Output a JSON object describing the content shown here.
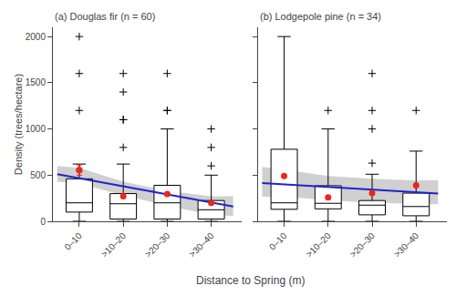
{
  "chart_data": [
    {
      "type": "box",
      "title": "(a) Douglas fir (n = 60)",
      "ylabel": "Density (trees/hectare)",
      "xlabel": "Distance to Spring (m)",
      "categories": [
        "0–10",
        ">10–20",
        ">20–30",
        ">30–40"
      ],
      "x": [
        1,
        2,
        3,
        4
      ],
      "xlim": [
        0.4,
        4.7
      ],
      "ylim": [
        0,
        2100
      ],
      "yticks": [
        0,
        500,
        1000,
        1500,
        2000
      ],
      "grid": false,
      "boxes": {
        "q1": [
          100,
          25,
          25,
          25
        ],
        "median": [
          200,
          190,
          200,
          125
        ],
        "q3": [
          460,
          300,
          390,
          225
        ],
        "whisker_low": [
          0,
          0,
          0,
          0
        ],
        "whisker_high": [
          620,
          620,
          1000,
          500
        ],
        "color": "white",
        "edge_color": "black"
      },
      "outliers": {
        "values": [
          [
            1600,
            1200,
            2000
          ],
          [
            1600,
            1400,
            800,
            1100,
            1100
          ],
          [
            1600,
            1200,
            1200
          ],
          [
            1000,
            800,
            600
          ]
        ],
        "color": "black",
        "marker": "plus"
      },
      "means": {
        "values": [
          555,
          270,
          295,
          200
        ],
        "err_up": [
          55,
          0,
          0,
          0
        ],
        "err_dn": [
          55,
          0,
          0,
          0
        ],
        "color": "#e8281e",
        "marker": "circle"
      },
      "trend": {
        "x": [
          0.5,
          4.5
        ],
        "y": [
          510,
          160
        ],
        "color": "#2222cc"
      },
      "ci": {
        "x": [
          0.5,
          1.0,
          2.0,
          3.0,
          4.0,
          4.5
        ],
        "upper": [
          600,
          580,
          430,
          330,
          270,
          270
        ],
        "lower": [
          430,
          410,
          280,
          170,
          70,
          60
        ],
        "color": "#c8c8c8"
      }
    },
    {
      "type": "box",
      "title": "(b) Lodgepole pine (n = 34)",
      "categories": [
        "0–10",
        ">10–20",
        ">20–30",
        ">30–40"
      ],
      "x": [
        1,
        2,
        3,
        4
      ],
      "xlim": [
        0.4,
        4.7
      ],
      "ylim": [
        0,
        2100
      ],
      "yticks": [
        0,
        500,
        1000,
        1500,
        2000
      ],
      "grid": false,
      "tick_labels": "x",
      "boxes": {
        "q1": [
          130,
          135,
          70,
          60
        ],
        "median": [
          200,
          195,
          175,
          160
        ],
        "q3": [
          780,
          385,
          225,
          305
        ],
        "whisker_low": [
          0,
          0,
          0,
          0
        ],
        "whisker_high": [
          2000,
          1000,
          510,
          760
        ],
        "color": "white",
        "edge_color": "black"
      },
      "outliers": {
        "values": [
          [],
          [
            1200
          ],
          [
            1600,
            1200,
            1000,
            630
          ],
          [
            1200
          ]
        ],
        "color": "black",
        "marker": "plus"
      },
      "means": {
        "values": [
          490,
          260,
          305,
          390
        ],
        "err_up": [
          0,
          0,
          0,
          0
        ],
        "err_dn": [
          0,
          0,
          0,
          0
        ],
        "color": "#e8281e",
        "marker": "circle"
      },
      "trend": {
        "x": [
          0.5,
          4.5
        ],
        "y": [
          415,
          300
        ],
        "color": "#2222cc"
      },
      "ci": {
        "x": [
          0.5,
          1.0,
          2.0,
          3.0,
          4.0,
          4.5
        ],
        "upper": [
          590,
          560,
          490,
          460,
          440,
          445
        ],
        "lower": [
          265,
          265,
          230,
          200,
          190,
          185
        ],
        "color": "#c8c8c8"
      }
    }
  ]
}
